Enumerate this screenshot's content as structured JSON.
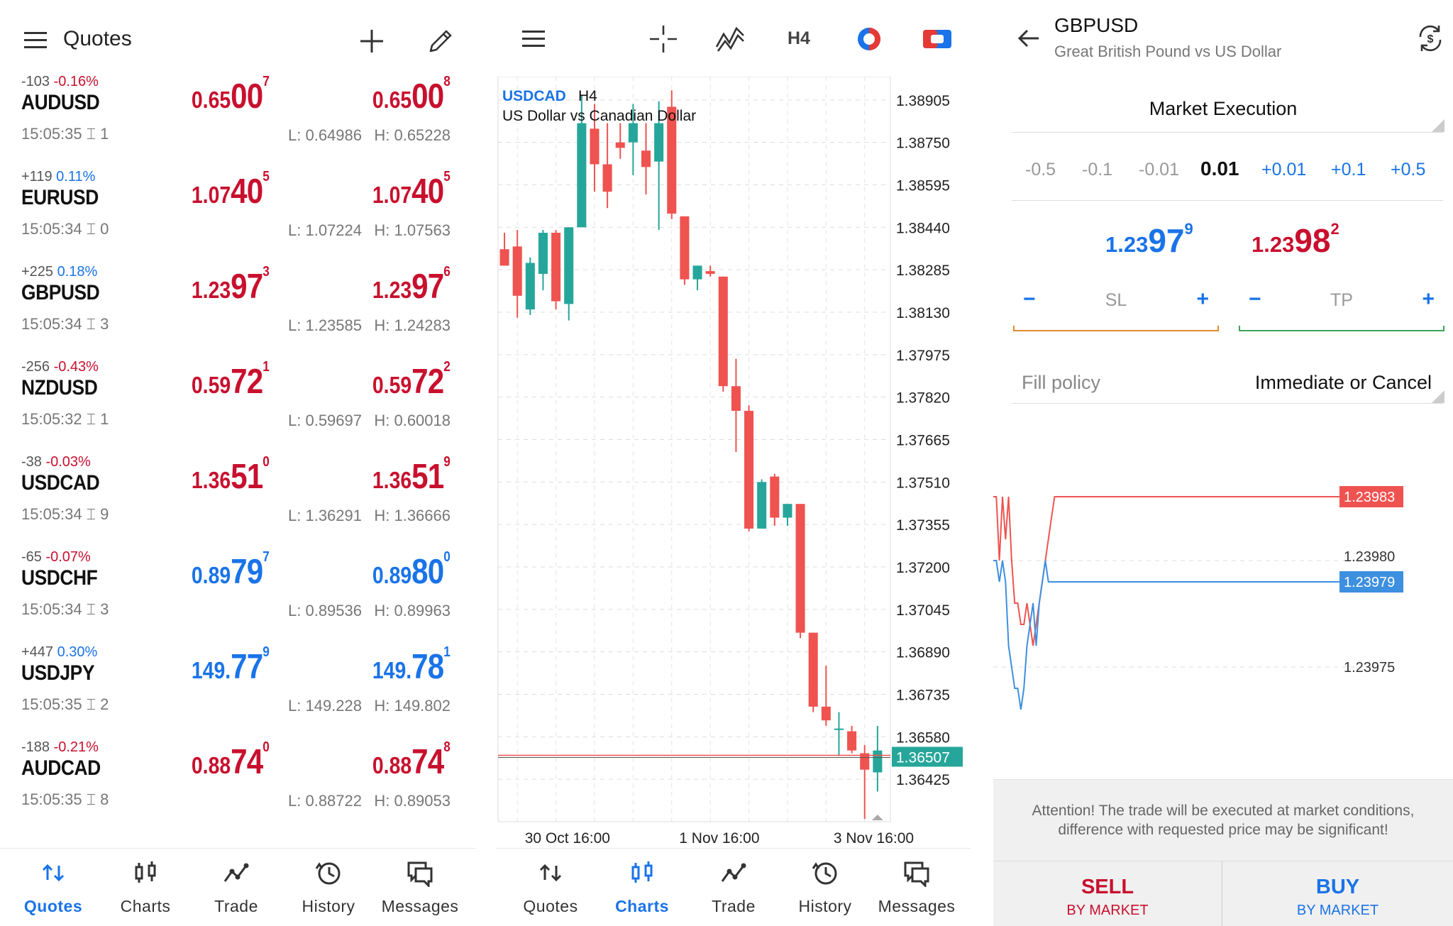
{
  "colors": {
    "red": "#c8102e",
    "blue": "#1a73e8",
    "bull": "#26a69a",
    "bear": "#ef5350"
  },
  "quotes_screen": {
    "title": "Quotes",
    "icons": [
      "menu-icon",
      "plus-icon",
      "pencil-icon"
    ],
    "rows": [
      {
        "change": "-103",
        "pct": "-0.16%",
        "dir": "neg",
        "symbol": "AUDUSD",
        "time": "15:05:35",
        "spread": "1",
        "bid": {
          "small": "0.65",
          "big": "00",
          "sup": "7",
          "color": "red"
        },
        "ask": {
          "small": "0.65",
          "big": "00",
          "sup": "8",
          "color": "red"
        },
        "low": "L: 0.64986",
        "high": "H: 0.65228"
      },
      {
        "change": "+119",
        "pct": "0.11%",
        "dir": "pos",
        "symbol": "EURUSD",
        "time": "15:05:34",
        "spread": "0",
        "bid": {
          "small": "1.07",
          "big": "40",
          "sup": "5",
          "color": "red"
        },
        "ask": {
          "small": "1.07",
          "big": "40",
          "sup": "5",
          "color": "red"
        },
        "low": "L: 1.07224",
        "high": "H: 1.07563"
      },
      {
        "change": "+225",
        "pct": "0.18%",
        "dir": "pos",
        "symbol": "GBPUSD",
        "time": "15:05:34",
        "spread": "3",
        "bid": {
          "small": "1.23",
          "big": "97",
          "sup": "3",
          "color": "red"
        },
        "ask": {
          "small": "1.23",
          "big": "97",
          "sup": "6",
          "color": "red"
        },
        "low": "L: 1.23585",
        "high": "H: 1.24283"
      },
      {
        "change": "-256",
        "pct": "-0.43%",
        "dir": "neg",
        "symbol": "NZDUSD",
        "time": "15:05:32",
        "spread": "1",
        "bid": {
          "small": "0.59",
          "big": "72",
          "sup": "1",
          "color": "red"
        },
        "ask": {
          "small": "0.59",
          "big": "72",
          "sup": "2",
          "color": "red"
        },
        "low": "L: 0.59697",
        "high": "H: 0.60018"
      },
      {
        "change": "-38",
        "pct": "-0.03%",
        "dir": "neg",
        "symbol": "USDCAD",
        "time": "15:05:34",
        "spread": "9",
        "bid": {
          "small": "1.36",
          "big": "51",
          "sup": "0",
          "color": "red"
        },
        "ask": {
          "small": "1.36",
          "big": "51",
          "sup": "9",
          "color": "red"
        },
        "low": "L: 1.36291",
        "high": "H: 1.36666"
      },
      {
        "change": "-65",
        "pct": "-0.07%",
        "dir": "neg",
        "symbol": "USDCHF",
        "time": "15:05:34",
        "spread": "3",
        "bid": {
          "small": "0.89",
          "big": "79",
          "sup": "7",
          "color": "blue"
        },
        "ask": {
          "small": "0.89",
          "big": "80",
          "sup": "0",
          "color": "blue"
        },
        "low": "L: 0.89536",
        "high": "H: 0.89963"
      },
      {
        "change": "+447",
        "pct": "0.30%",
        "dir": "pos",
        "symbol": "USDJPY",
        "time": "15:05:35",
        "spread": "2",
        "bid": {
          "small": "149.",
          "big": "77",
          "sup": "9",
          "color": "blue"
        },
        "ask": {
          "small": "149.",
          "big": "78",
          "sup": "1",
          "color": "blue"
        },
        "low": "L: 149.228",
        "high": "H: 149.802"
      },
      {
        "change": "-188",
        "pct": "-0.21%",
        "dir": "neg",
        "symbol": "AUDCAD",
        "time": "15:05:35",
        "spread": "8",
        "bid": {
          "small": "0.88",
          "big": "74",
          "sup": "0",
          "color": "red"
        },
        "ask": {
          "small": "0.88",
          "big": "74",
          "sup": "8",
          "color": "red"
        },
        "low": "L: 0.88722",
        "high": "H: 0.89053"
      }
    ],
    "nav": [
      {
        "label": "Quotes",
        "icon": "quotes-icon",
        "active": true
      },
      {
        "label": "Charts",
        "icon": "charts-icon",
        "active": false
      },
      {
        "label": "Trade",
        "icon": "trade-icon",
        "active": false
      },
      {
        "label": "History",
        "icon": "history-icon",
        "active": false
      },
      {
        "label": "Messages",
        "icon": "messages-icon",
        "active": false
      }
    ]
  },
  "charts_screen": {
    "toolbar": {
      "timeframe": "H4",
      "icons": [
        "menu-icon",
        "crosshair-icon",
        "indicators-icon",
        "timeframe-label",
        "color-scheme-icon",
        "trade-toggle-icon"
      ]
    },
    "symbol": "USDCAD",
    "timeframe": "H4",
    "description": "US Dollar vs Canadian Dollar",
    "nav": [
      {
        "label": "Quotes",
        "icon": "quotes-icon",
        "active": false
      },
      {
        "label": "Charts",
        "icon": "charts-icon",
        "active": true
      },
      {
        "label": "Trade",
        "icon": "trade-icon",
        "active": false
      },
      {
        "label": "History",
        "icon": "history-icon",
        "active": false
      },
      {
        "label": "Messages",
        "icon": "messages-icon",
        "active": false
      }
    ]
  },
  "chart_data": {
    "type": "candlestick",
    "title": "USDCAD",
    "subtitle": "US Dollar vs Canadian Dollar",
    "timeframe": "H4",
    "y_ticks": [
      "1.38905",
      "1.38750",
      "1.38595",
      "1.38440",
      "1.38285",
      "1.38130",
      "1.37975",
      "1.37820",
      "1.37665",
      "1.37510",
      "1.37355",
      "1.37200",
      "1.37045",
      "1.36890",
      "1.36735",
      "1.36580",
      "1.36425"
    ],
    "ylim": [
      1.3627,
      1.3899
    ],
    "x_ticks": [
      {
        "label": "30 Oct 16:00",
        "index": 5
      },
      {
        "label": "1 Nov 16:00",
        "index": 17
      },
      {
        "label": "3 Nov 16:00",
        "index": 29
      }
    ],
    "current_price": "1.36507",
    "current_value": 1.36507,
    "grid": true,
    "candles": [
      {
        "o": 1.3836,
        "h": 1.3842,
        "l": 1.383,
        "c": 1.383
      },
      {
        "o": 1.3837,
        "h": 1.3843,
        "l": 1.3811,
        "c": 1.3819
      },
      {
        "o": 1.3814,
        "h": 1.3833,
        "l": 1.3812,
        "c": 1.3831
      },
      {
        "o": 1.3827,
        "h": 1.3843,
        "l": 1.3821,
        "c": 1.3842
      },
      {
        "o": 1.3842,
        "h": 1.3843,
        "l": 1.3814,
        "c": 1.3817
      },
      {
        "o": 1.3816,
        "h": 1.3844,
        "l": 1.381,
        "c": 1.3844
      },
      {
        "o": 1.3844,
        "h": 1.3892,
        "l": 1.3844,
        "c": 1.3882
      },
      {
        "o": 1.388,
        "h": 1.3889,
        "l": 1.3857,
        "c": 1.3867
      },
      {
        "o": 1.3867,
        "h": 1.3882,
        "l": 1.3851,
        "c": 1.3857
      },
      {
        "o": 1.3875,
        "h": 1.3882,
        "l": 1.3869,
        "c": 1.3873
      },
      {
        "o": 1.3875,
        "h": 1.3889,
        "l": 1.3863,
        "c": 1.3882
      },
      {
        "o": 1.3872,
        "h": 1.3882,
        "l": 1.3856,
        "c": 1.3866
      },
      {
        "o": 1.3868,
        "h": 1.389,
        "l": 1.3843,
        "c": 1.3882
      },
      {
        "o": 1.3888,
        "h": 1.3894,
        "l": 1.3847,
        "c": 1.3849
      },
      {
        "o": 1.3848,
        "h": 1.3848,
        "l": 1.3823,
        "c": 1.3825
      },
      {
        "o": 1.3825,
        "h": 1.383,
        "l": 1.3821,
        "c": 1.383
      },
      {
        "o": 1.3828,
        "h": 1.383,
        "l": 1.3826,
        "c": 1.3827
      },
      {
        "o": 1.3826,
        "h": 1.3826,
        "l": 1.3784,
        "c": 1.3786
      },
      {
        "o": 1.3786,
        "h": 1.3796,
        "l": 1.3762,
        "c": 1.3777
      },
      {
        "o": 1.3777,
        "h": 1.3779,
        "l": 1.3733,
        "c": 1.3734
      },
      {
        "o": 1.3734,
        "h": 1.3752,
        "l": 1.3734,
        "c": 1.3751
      },
      {
        "o": 1.3753,
        "h": 1.3754,
        "l": 1.3735,
        "c": 1.3738
      },
      {
        "o": 1.3738,
        "h": 1.3743,
        "l": 1.3735,
        "c": 1.3743
      },
      {
        "o": 1.3743,
        "h": 1.3743,
        "l": 1.3694,
        "c": 1.3696
      },
      {
        "o": 1.3696,
        "h": 1.3696,
        "l": 1.3667,
        "c": 1.3669
      },
      {
        "o": 1.3669,
        "h": 1.3684,
        "l": 1.3662,
        "c": 1.3664
      },
      {
        "o": 1.3661,
        "h": 1.3667,
        "l": 1.3651,
        "c": 1.3661
      },
      {
        "o": 1.366,
        "h": 1.3662,
        "l": 1.3652,
        "c": 1.3653
      },
      {
        "o": 1.3652,
        "h": 1.3655,
        "l": 1.3628,
        "c": 1.3646
      },
      {
        "o": 1.3645,
        "h": 1.3662,
        "l": 1.3638,
        "c": 1.3653
      }
    ]
  },
  "trade_screen": {
    "symbol": "GBPUSD",
    "description": "Great British Pound vs US Dollar",
    "execution": "Market Execution",
    "volume_options": [
      "-0.5",
      "-0.1",
      "-0.01",
      "0.01",
      "+0.01",
      "+0.1",
      "+0.5"
    ],
    "volume_selected": "0.01",
    "bid": {
      "small": "1.23",
      "big": "97",
      "sup": "9"
    },
    "ask": {
      "small": "1.23",
      "big": "98",
      "sup": "2"
    },
    "sl": {
      "label": "SL",
      "minus": "−",
      "plus": "+"
    },
    "tp": {
      "label": "TP",
      "minus": "−",
      "plus": "+"
    },
    "fill_policy_label": "Fill policy",
    "fill_policy_value": "Immediate or Cancel",
    "tick_chart": {
      "labels": [
        "1.23983",
        "1.23980",
        "1.23979",
        "1.23975"
      ],
      "ask_series": [
        1.23983,
        1.23983,
        1.2398,
        1.23983,
        1.23981,
        1.23983,
        1.2398,
        1.23978,
        1.23978,
        1.23977,
        1.23977,
        1.23978,
        1.23977,
        1.23976,
        1.23977,
        1.23978,
        1.23979,
        1.2398,
        1.23981,
        1.23982,
        1.23983,
        1.23983,
        1.23983
      ],
      "bid_series": [
        1.2398,
        1.2398,
        1.23979,
        1.2398,
        1.23979,
        1.23976,
        1.23975,
        1.23974,
        1.23974,
        1.23973,
        1.23974,
        1.23976,
        1.23977,
        1.23978,
        1.23976,
        1.23978,
        1.23979,
        1.2398,
        1.23979,
        1.23979,
        1.23979,
        1.23979,
        1.23979
      ]
    },
    "notice": "Attention! The trade will be executed at market conditions, difference with requested price may be significant!",
    "sell": {
      "label": "SELL",
      "sub": "BY MARKET"
    },
    "buy": {
      "label": "BUY",
      "sub": "BY MARKET"
    }
  }
}
